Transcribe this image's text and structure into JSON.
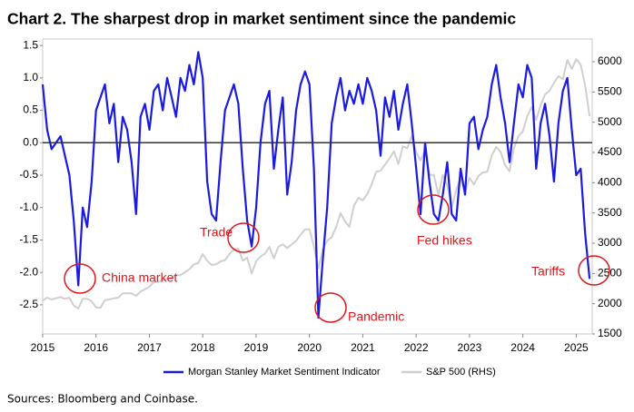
{
  "chart_data": {
    "type": "line",
    "title": "Chart 2. The sharpest drop in market sentiment since the pandemic",
    "source": "Sources: Bloomberg and Coinbase.",
    "xlim": [
      2015,
      2025.3
    ],
    "xticks": [
      2015,
      2016,
      2017,
      2018,
      2019,
      2020,
      2021,
      2022,
      2023,
      2024,
      2025
    ],
    "ylim": [
      -2.95,
      1.6
    ],
    "yticks": [
      1.5,
      {
        "value": 1,
        "label": "1.0"
      },
      0.5,
      {
        "value": 0,
        "label": "0.0"
      },
      -0.5,
      {
        "value": -1,
        "label": "-1.0"
      },
      -1.5,
      {
        "value": -2,
        "label": "-2.0"
      },
      -2.5
    ],
    "y2lim": [
      1500,
      6375
    ],
    "y2ticks": [
      1500,
      2000,
      2500,
      3000,
      3500,
      4000,
      4500,
      5000,
      5500,
      6000
    ],
    "zero_line": true,
    "annotations": [
      "China market",
      "Trade",
      "Pandemic",
      "Fed hikes",
      "Tariffs"
    ],
    "x": [
      2015.0,
      2015.083,
      2015.167,
      2015.25,
      2015.333,
      2015.417,
      2015.5,
      2015.583,
      2015.667,
      2015.75,
      2015.833,
      2015.917,
      2016.0,
      2016.083,
      2016.167,
      2016.25,
      2016.333,
      2016.417,
      2016.5,
      2016.583,
      2016.667,
      2016.75,
      2016.833,
      2016.917,
      2017.0,
      2017.083,
      2017.167,
      2017.25,
      2017.333,
      2017.417,
      2017.5,
      2017.583,
      2017.667,
      2017.75,
      2017.833,
      2017.917,
      2018.0,
      2018.083,
      2018.167,
      2018.25,
      2018.333,
      2018.417,
      2018.5,
      2018.583,
      2018.667,
      2018.75,
      2018.833,
      2018.917,
      2019.0,
      2019.083,
      2019.167,
      2019.25,
      2019.333,
      2019.417,
      2019.5,
      2019.583,
      2019.667,
      2019.75,
      2019.833,
      2019.917,
      2020.0,
      2020.083,
      2020.167,
      2020.25,
      2020.333,
      2020.417,
      2020.5,
      2020.583,
      2020.667,
      2020.75,
      2020.833,
      2020.917,
      2021.0,
      2021.083,
      2021.167,
      2021.25,
      2021.333,
      2021.417,
      2021.5,
      2021.583,
      2021.667,
      2021.75,
      2021.833,
      2021.917,
      2022.0,
      2022.083,
      2022.167,
      2022.25,
      2022.333,
      2022.417,
      2022.5,
      2022.583,
      2022.667,
      2022.75,
      2022.833,
      2022.917,
      2023.0,
      2023.083,
      2023.167,
      2023.25,
      2023.333,
      2023.417,
      2023.5,
      2023.583,
      2023.667,
      2023.75,
      2023.833,
      2023.917,
      2024.0,
      2024.083,
      2024.167,
      2024.25,
      2024.333,
      2024.417,
      2024.5,
      2024.583,
      2024.667,
      2024.75,
      2024.833,
      2024.917,
      2025.0,
      2025.083,
      2025.167,
      2025.25
    ],
    "series": [
      {
        "name": "S&P 500 (RHS)",
        "color": "#cfcfcf",
        "axis": "y2",
        "values": [
          2050,
          2100,
          2070,
          2090,
          2110,
          2080,
          2100,
          1970,
          1920,
          2080,
          2080,
          2040,
          1940,
          1930,
          2060,
          2070,
          2090,
          2100,
          2170,
          2170,
          2170,
          2130,
          2200,
          2240,
          2280,
          2360,
          2360,
          2380,
          2410,
          2420,
          2470,
          2470,
          2520,
          2570,
          2650,
          2670,
          2820,
          2710,
          2640,
          2650,
          2700,
          2720,
          2820,
          2900,
          2910,
          2710,
          2760,
          2500,
          2700,
          2780,
          2830,
          2940,
          2750,
          2940,
          2980,
          2920,
          2980,
          3040,
          3140,
          3230,
          3230,
          2950,
          2580,
          2900,
          3040,
          3100,
          3270,
          3500,
          3360,
          3270,
          3620,
          3750,
          3710,
          3810,
          3970,
          4180,
          4200,
          4300,
          4400,
          4520,
          4310,
          4600,
          4570,
          4770,
          4500,
          4370,
          4530,
          4130,
          4130,
          3790,
          4130,
          3960,
          3590,
          3870,
          4080,
          3840,
          4080,
          3970,
          4110,
          4170,
          4180,
          4450,
          4590,
          4510,
          4290,
          4190,
          4570,
          4770,
          4850,
          5100,
          5250,
          5040,
          5280,
          5460,
          5520,
          5650,
          5760,
          5710,
          6030,
          5880,
          6040,
          5950,
          5610,
          5100
        ]
      },
      {
        "name": "Morgan Stanley Market Sentiment Indicator",
        "color": "#1a1ae0",
        "values": [
          0.9,
          0.2,
          -0.1,
          0.0,
          0.1,
          -0.2,
          -0.5,
          -1.2,
          -2.2,
          -1.0,
          -1.3,
          -0.6,
          0.5,
          0.7,
          0.9,
          0.3,
          0.6,
          -0.3,
          0.4,
          0.2,
          -0.3,
          -1.1,
          0.4,
          0.6,
          0.2,
          0.8,
          0.9,
          0.5,
          1.0,
          0.7,
          0.4,
          1.0,
          0.8,
          1.2,
          0.9,
          1.4,
          1.0,
          -0.6,
          -1.1,
          -1.2,
          -0.3,
          0.5,
          0.7,
          0.9,
          0.6,
          -0.4,
          -1.2,
          -1.6,
          -1.0,
          0.0,
          0.6,
          0.8,
          -0.4,
          0.2,
          0.7,
          -0.8,
          -0.3,
          0.5,
          0.9,
          1.1,
          0.9,
          -0.4,
          -2.7,
          -1.8,
          -1.0,
          0.3,
          0.7,
          1.0,
          0.5,
          0.8,
          0.6,
          0.9,
          0.6,
          1.0,
          0.8,
          0.5,
          -0.2,
          0.7,
          0.4,
          0.8,
          0.2,
          0.6,
          0.9,
          0.3,
          -0.4,
          -1.1,
          0.0,
          -0.6,
          -1.1,
          -1.2,
          -0.8,
          -0.3,
          -1.1,
          -1.2,
          -0.4,
          -0.8,
          0.3,
          0.4,
          -0.1,
          0.2,
          0.4,
          0.9,
          1.2,
          0.7,
          0.3,
          -0.3,
          0.3,
          0.9,
          0.7,
          1.2,
          1.0,
          -0.4,
          0.3,
          0.6,
          0.1,
          -0.6,
          0.3,
          0.8,
          1.0,
          0.2,
          -0.5,
          -0.4,
          -1.4,
          -2.1
        ]
      }
    ]
  }
}
